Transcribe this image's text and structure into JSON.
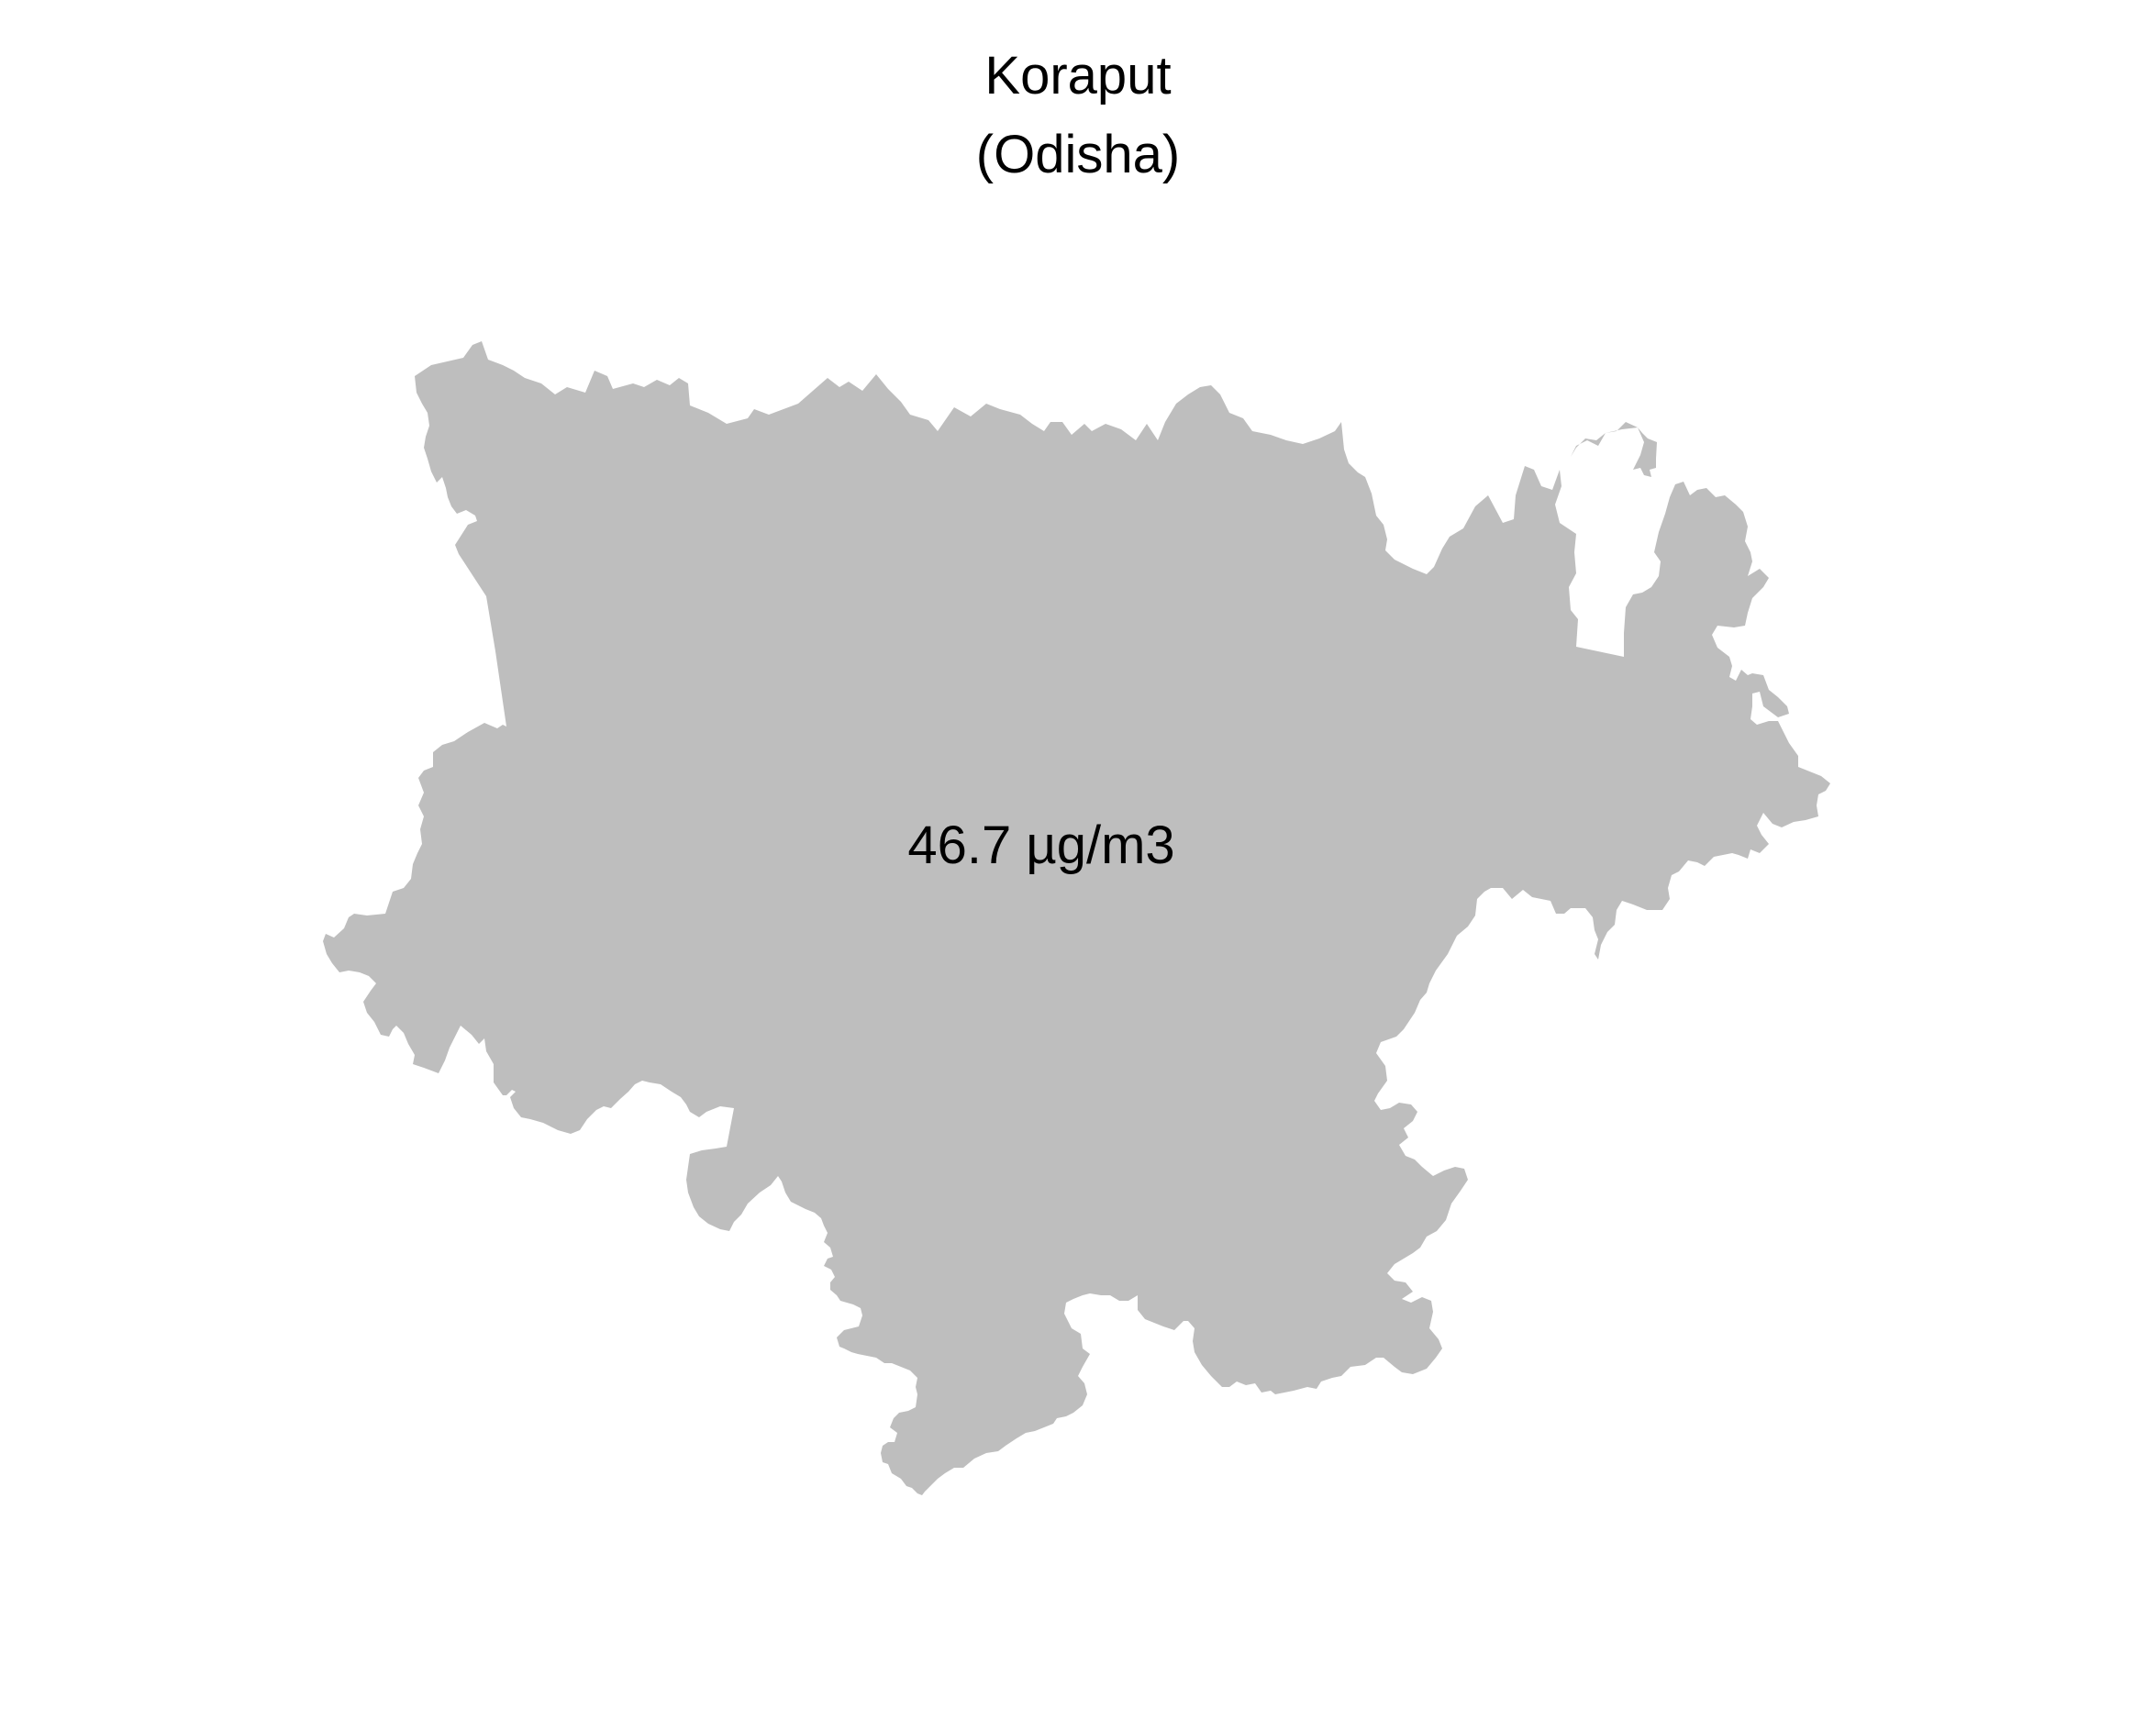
{
  "map": {
    "title": "Koraput",
    "subtitle": "(Odisha)",
    "value_label": "46.7 µg/m3",
    "fill_color": "#bebebe",
    "background_color": "#ffffff"
  }
}
